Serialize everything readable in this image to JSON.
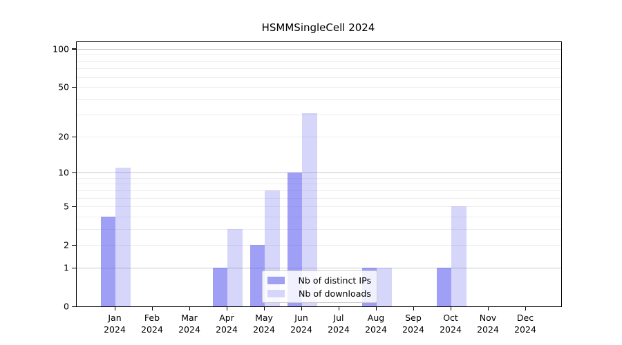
{
  "chart_data": {
    "type": "bar",
    "title": "HSMMSingleCell 2024",
    "categories": [
      "Jan",
      "Feb",
      "Mar",
      "Apr",
      "May",
      "Jun",
      "Jul",
      "Aug",
      "Sep",
      "Oct",
      "Nov",
      "Dec"
    ],
    "category_year": "2024",
    "series": [
      {
        "name": "Nb of distinct IPs",
        "color": "rgba(90,90,238,0.58)",
        "swatch": "#9f9ff3",
        "values": [
          4,
          0,
          0,
          1,
          2,
          10,
          0,
          1,
          0,
          1,
          0,
          0
        ]
      },
      {
        "name": "Nb of downloads",
        "color": "rgba(90,90,238,0.25)",
        "swatch": "#d6d6fb",
        "values": [
          11,
          0,
          0,
          3,
          7,
          31,
          0,
          1,
          0,
          5,
          0,
          0
        ]
      }
    ],
    "xlabel": "",
    "ylabel": "",
    "yscale": "log1p",
    "ylim": [
      0,
      113
    ],
    "ytick_values": [
      0,
      1,
      2,
      5,
      10,
      20,
      50,
      100
    ],
    "major_grid_values": [
      1,
      10,
      100
    ],
    "minor_grid_values": [
      2,
      3,
      4,
      5,
      6,
      7,
      8,
      9,
      20,
      30,
      40,
      50,
      60,
      70,
      80,
      90
    ],
    "grid": "on",
    "legend_position": "lower center",
    "colors": {
      "axis": "#000000",
      "major_grid": "#c6c6c6",
      "minor_grid": "#ececec",
      "legend_border": "#cccccc"
    }
  }
}
